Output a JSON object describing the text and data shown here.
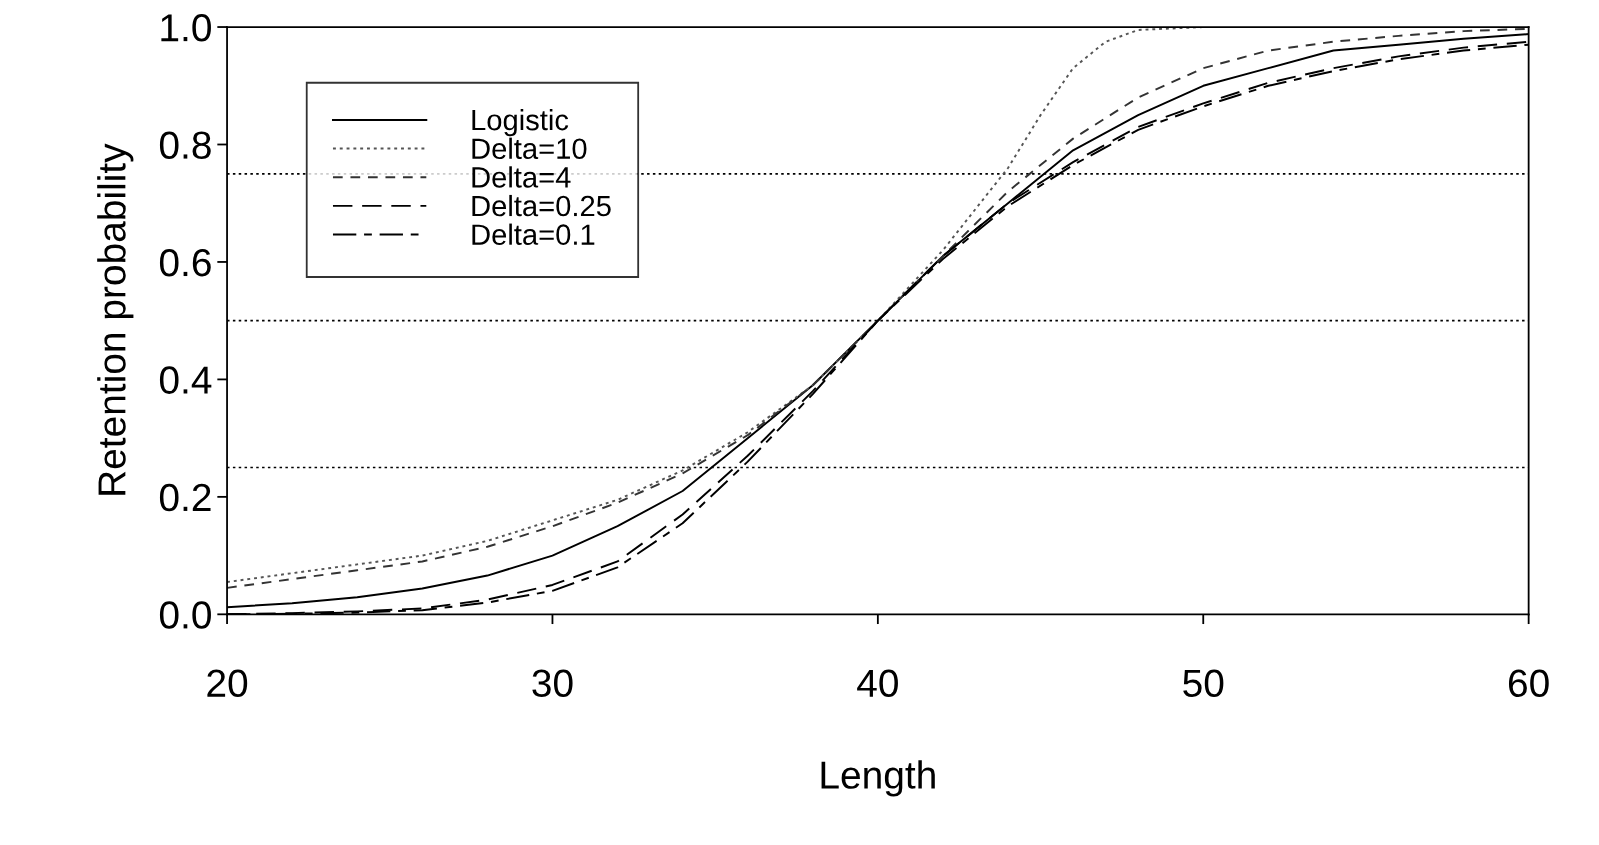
{
  "chart_data": {
    "type": "line",
    "xlabel": "Length",
    "ylabel": "Retention probability",
    "x": [
      20,
      22,
      24,
      26,
      28,
      30,
      32,
      34,
      36,
      38,
      40,
      42,
      44,
      46,
      48,
      50,
      52,
      54,
      56,
      58,
      60
    ],
    "xlim": [
      20,
      60
    ],
    "xticks": [
      20,
      30,
      40,
      50,
      60
    ],
    "ylim": [
      0,
      1
    ],
    "yticks": [
      {
        "value": 0,
        "label": "0.0"
      },
      0.2,
      0.4,
      0.6,
      0.8,
      {
        "value": 1,
        "label": "1.0"
      }
    ],
    "grid": false,
    "legend": "top left",
    "marker": "none",
    "ref_lines": [
      {
        "axis": "y",
        "value": 0.25,
        "color": "#000000",
        "line_style": "dotted"
      },
      {
        "axis": "y",
        "value": 0.5,
        "color": "#000000",
        "line_style": "dotted"
      },
      {
        "axis": "y",
        "value": 0.75,
        "color": "#000000",
        "line_style": "dotted"
      }
    ],
    "series": [
      {
        "name": "Logistic",
        "color": "#000000",
        "line_style": "solid",
        "values": [
          0.012,
          0.019,
          0.029,
          0.044,
          0.066,
          0.1,
          0.15,
          0.21,
          0.3,
          0.39,
          0.5,
          0.61,
          0.7,
          0.79,
          0.85,
          0.9,
          0.93,
          0.96,
          0.97,
          0.98,
          0.988
        ]
      },
      {
        "name": "Delta=10",
        "color": "#555555",
        "line_style": "dotted",
        "x": [
          20,
          22,
          24,
          26,
          28,
          30,
          32,
          34,
          36,
          38,
          40,
          42,
          43,
          44,
          45,
          46,
          47,
          48,
          50,
          55,
          60
        ],
        "values": [
          0.055,
          0.07,
          0.085,
          0.1,
          0.125,
          0.16,
          0.195,
          0.245,
          0.31,
          0.39,
          0.5,
          0.62,
          0.69,
          0.76,
          0.85,
          0.93,
          0.975,
          0.995,
          1.0,
          1.0,
          1.0
        ]
      },
      {
        "name": "Delta=4",
        "color": "#333333",
        "line_style": "dashed",
        "values": [
          0.045,
          0.06,
          0.075,
          0.09,
          0.115,
          0.15,
          0.19,
          0.24,
          0.305,
          0.39,
          0.5,
          0.61,
          0.72,
          0.81,
          0.88,
          0.93,
          0.96,
          0.975,
          0.985,
          0.993,
          0.997
        ]
      },
      {
        "name": "Delta=0.25",
        "color": "#000000",
        "line_style": "long dashed",
        "values": [
          0.0,
          0.002,
          0.005,
          0.01,
          0.025,
          0.05,
          0.09,
          0.17,
          0.27,
          0.38,
          0.5,
          0.61,
          0.7,
          0.77,
          0.83,
          0.87,
          0.905,
          0.93,
          0.95,
          0.965,
          0.975
        ]
      },
      {
        "name": "Delta=0.1",
        "color": "#000000",
        "line_style": "dash dot",
        "values": [
          0.0,
          0.001,
          0.003,
          0.007,
          0.02,
          0.04,
          0.08,
          0.155,
          0.26,
          0.375,
          0.5,
          0.605,
          0.695,
          0.765,
          0.825,
          0.865,
          0.9,
          0.925,
          0.945,
          0.96,
          0.97
        ]
      }
    ]
  }
}
